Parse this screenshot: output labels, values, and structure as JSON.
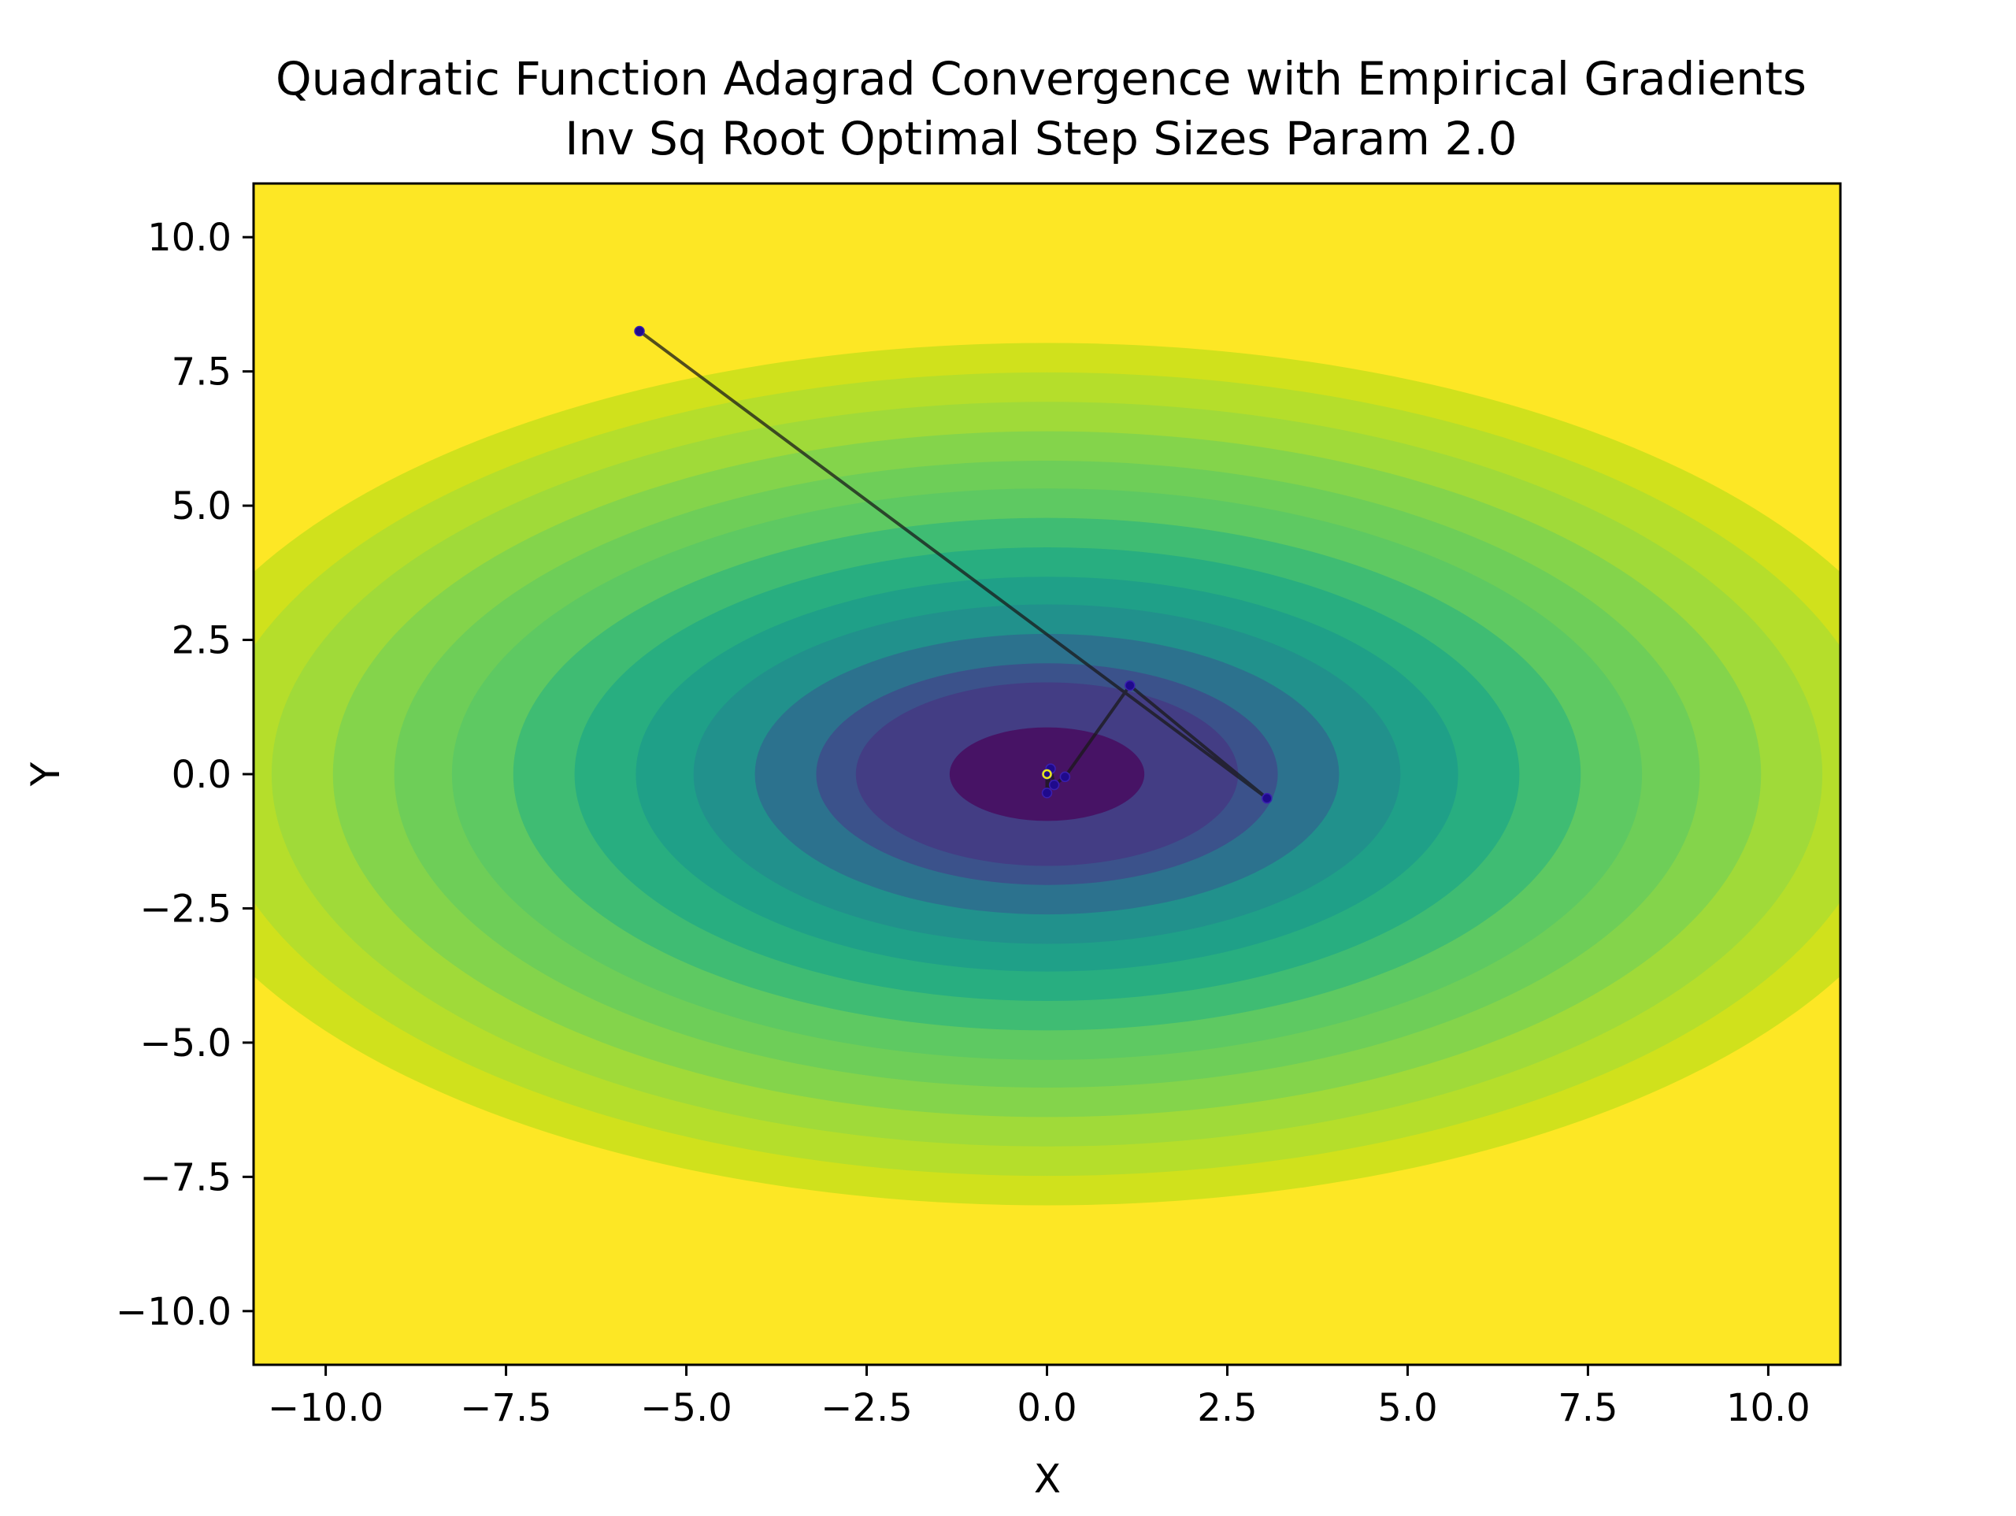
{
  "chart_data": {
    "type": "scatter",
    "title": [
      "Quadratic Function Adagrad Convergence with Empirical Gradients",
      "Inv Sq Root Optimal Step Sizes Param 2.0"
    ],
    "xlabel": "X",
    "ylabel": "Y",
    "xlim": [
      -11,
      11
    ],
    "ylim": [
      -11,
      11
    ],
    "x_ticks": [
      -10.0,
      -7.5,
      -5.0,
      -2.5,
      0.0,
      2.5,
      5.0,
      7.5,
      10.0
    ],
    "y_ticks": [
      -10.0,
      -7.5,
      -5.0,
      -2.5,
      0.0,
      2.5,
      5.0,
      7.5,
      10.0
    ],
    "x_tick_labels": [
      "−10.0",
      "−7.5",
      "−5.0",
      "−2.5",
      "0.0",
      "2.5",
      "5.0",
      "7.5",
      "10.0"
    ],
    "y_tick_labels": [
      "−10.0",
      "−7.5",
      "−5.0",
      "−2.5",
      "0.0",
      "2.5",
      "5.0",
      "7.5",
      "10.0"
    ],
    "grid": false,
    "background": {
      "kind": "filled-contour",
      "colormap": "viridis",
      "center": [
        0,
        0
      ],
      "x_semi_axes": [
        1.35,
        2.65,
        3.2,
        4.05,
        4.9,
        5.7,
        6.55,
        7.4,
        8.25,
        9.05,
        9.9,
        10.75,
        11.6,
        12.45
      ],
      "y_to_x_ratio": 0.645,
      "colors": [
        "#471365",
        "#433d84",
        "#3b528b",
        "#2c728e",
        "#21918c",
        "#1fa088",
        "#28ae80",
        "#3fbc73",
        "#5ec962",
        "#6ece58",
        "#84d44b",
        "#a0da39",
        "#b5de2b",
        "#d0e11c",
        "#fde725"
      ]
    },
    "path": {
      "color": "#1a1a1a",
      "marker_color": "#1f0a8c",
      "points": [
        {
          "x": -5.65,
          "y": 8.25
        },
        {
          "x": 3.05,
          "y": -0.45
        },
        {
          "x": 1.15,
          "y": 1.65
        },
        {
          "x": 0.25,
          "y": -0.05
        },
        {
          "x": 0.1,
          "y": -0.2
        },
        {
          "x": 0.05,
          "y": 0.1
        },
        {
          "x": 0.0,
          "y": -0.35
        },
        {
          "x": 0.0,
          "y": 0.0
        }
      ]
    },
    "optimum": {
      "x": 0.0,
      "y": 0.0,
      "color": "#e8e81a"
    }
  }
}
